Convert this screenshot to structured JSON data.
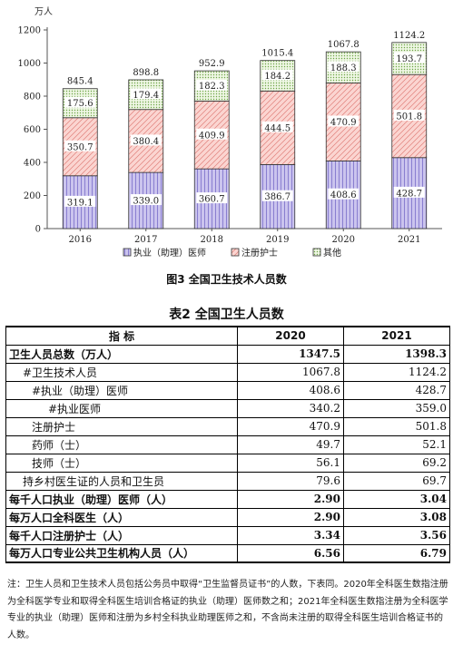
{
  "chart_data": {
    "type": "bar",
    "stacked": true,
    "ylabel": "万人",
    "ylim": [
      0,
      1200
    ],
    "yticks": [
      0,
      200,
      400,
      600,
      800,
      1000,
      1200
    ],
    "categories": [
      "2016",
      "2017",
      "2018",
      "2019",
      "2020",
      "2021"
    ],
    "series": [
      {
        "name": "执业（助理）医师",
        "values": [
          319.1,
          339.0,
          360.7,
          386.7,
          408.6,
          428.7
        ],
        "color": "#c9c3ec"
      },
      {
        "name": "注册护士",
        "values": [
          350.7,
          380.4,
          409.9,
          444.5,
          470.9,
          501.8
        ],
        "color": "#f6c9c5"
      },
      {
        "name": "其他",
        "values": [
          175.6,
          179.4,
          182.3,
          184.2,
          188.3,
          193.7
        ],
        "color": "#d8ebc3"
      }
    ],
    "totals": [
      845.4,
      898.8,
      952.9,
      1015.4,
      1067.8,
      1124.2
    ],
    "grid": false,
    "legend": "bottom"
  },
  "figure_caption": "图3 全国卫生技术人员数",
  "table": {
    "title": "表2   全国卫生人员数",
    "headers": [
      "指 标",
      "2020",
      "2021"
    ],
    "rows": [
      {
        "label": "卫生人员总数（万人）",
        "v2020": "1347.5",
        "v2021": "1398.3",
        "bold": true,
        "indent": 0
      },
      {
        "label": "#卫生技术人员",
        "v2020": "1067.8",
        "v2021": "1124.2",
        "bold": false,
        "indent": 1
      },
      {
        "label": "#执业（助理）医师",
        "v2020": "408.6",
        "v2021": "428.7",
        "bold": false,
        "indent": 2
      },
      {
        "label": "#执业医师",
        "v2020": "340.2",
        "v2021": "359.0",
        "bold": false,
        "indent": 3
      },
      {
        "label": "注册护士",
        "v2020": "470.9",
        "v2021": "501.8",
        "bold": false,
        "indent": 2
      },
      {
        "label": "药师（士）",
        "v2020": "49.7",
        "v2021": "52.1",
        "bold": false,
        "indent": 2
      },
      {
        "label": "技师（士）",
        "v2020": "56.1",
        "v2021": "69.2",
        "bold": false,
        "indent": 2
      },
      {
        "label": "持乡村医生证的人员和卫生员",
        "v2020": "79.6",
        "v2021": "69.7",
        "bold": false,
        "indent": 1
      },
      {
        "label": "每千人口执业（助理）医师（人）",
        "v2020": "2.90",
        "v2021": "3.04",
        "bold": true,
        "indent": 0
      },
      {
        "label": "每万人口全科医生（人）",
        "v2020": "2.90",
        "v2021": "3.08",
        "bold": true,
        "indent": 0
      },
      {
        "label": "每千人口注册护士（人）",
        "v2020": "3.34",
        "v2021": "3.56",
        "bold": true,
        "indent": 0
      },
      {
        "label": "每万人口专业公共卫生机构人员（人）",
        "v2020": "6.56",
        "v2021": "6.79",
        "bold": true,
        "indent": 0
      }
    ]
  },
  "note": "注：卫生人员和卫生技术人员包括公务员中取得“卫生监督员证书”的人数，下表同。2020年全科医生数指注册为全科医学专业和取得全科医生培训合格证的执业（助理）医师数之和；2021年全科医生数指注册为全科医学专业的执业（助理）医师和注册为乡村全科执业助理医师之和，不含尚未注册的取得全科医生培训合格证书的人数。"
}
